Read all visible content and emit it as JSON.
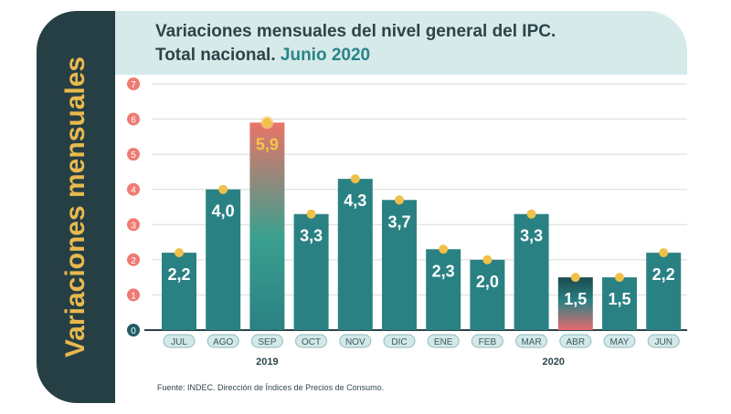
{
  "title_line1": "Variaciones mensuales del nivel general del IPC.",
  "title_line2_prefix": "Total nacional.",
  "title_line2_highlight": "Junio 2020",
  "side_label": "Variaciones mensuales",
  "source": "Fuente: INDEC. Dirección de Índices de Precios de Consumo.",
  "chart_data": {
    "type": "bar",
    "title": "Variaciones mensuales del nivel general del IPC. Total nacional. Junio 2020",
    "ylabel": "Variaciones mensuales",
    "y_unit_label": "%",
    "ylim": [
      0,
      7
    ],
    "yticks": [
      "0",
      "1",
      "2",
      "3",
      "4",
      "5",
      "6",
      "7"
    ],
    "categories": [
      "JUL",
      "AGO",
      "SEP",
      "OCT",
      "NOV",
      "DIC",
      "ENE",
      "FEB",
      "MAR",
      "ABR",
      "MAY",
      "JUN"
    ],
    "values": [
      2.2,
      4.0,
      5.9,
      3.3,
      4.3,
      3.7,
      2.3,
      2.0,
      3.3,
      1.5,
      1.5,
      2.2
    ],
    "value_labels": [
      "2,2",
      "4,0",
      "5,9",
      "3,3",
      "4,3",
      "3,7",
      "2,3",
      "2,0",
      "3,3",
      "1,5",
      "1,5",
      "2,2"
    ],
    "year_groups": [
      {
        "label": "2019",
        "from": 0,
        "to": 5
      },
      {
        "label": "2020",
        "from": 6,
        "to": 11
      }
    ],
    "highlight_max": "SEP",
    "highlight_min": "ABR",
    "colors": {
      "bar": "#2a8183",
      "marker": "#f0c04a",
      "tick_circle": "#ee7b73",
      "zero_circle": "#1f5c63",
      "label_highlight": "#f6c44e"
    }
  }
}
